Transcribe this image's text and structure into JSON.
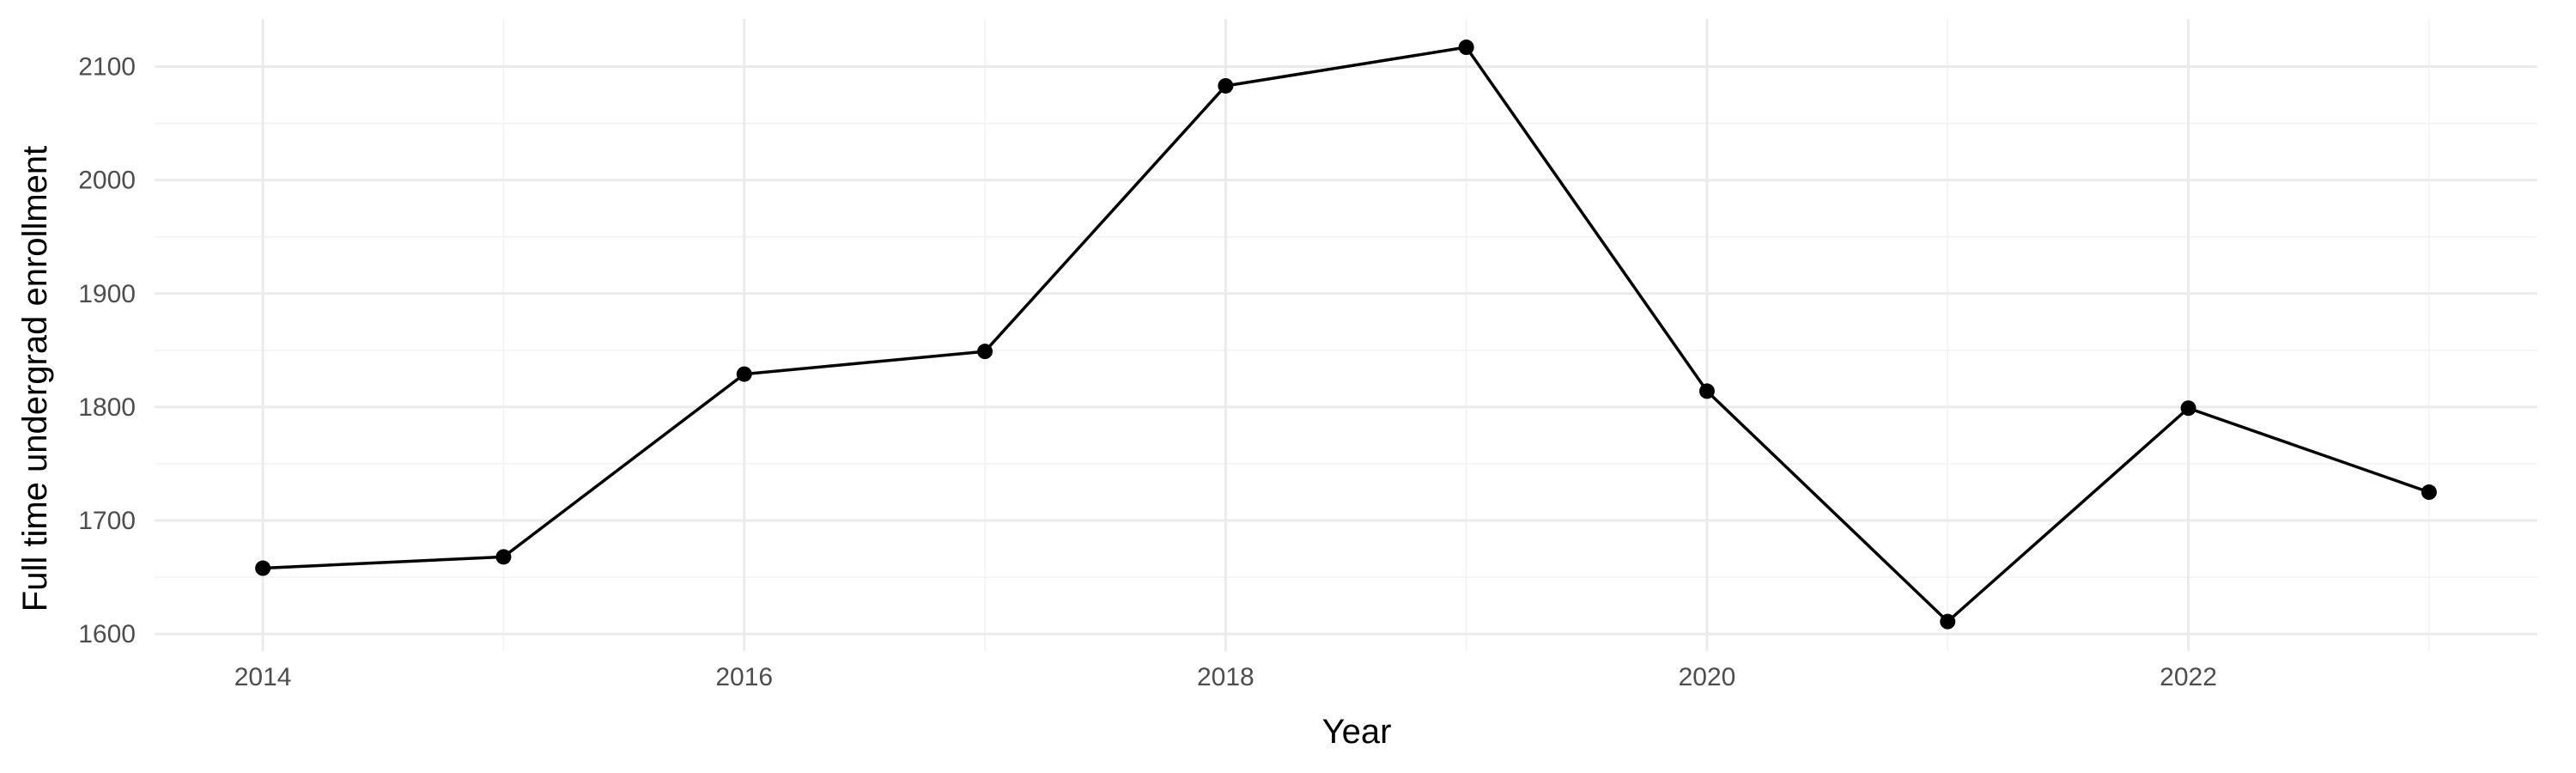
{
  "chart_data": {
    "type": "line",
    "xlabel": "Year",
    "ylabel": "Full time undergrad enrollment",
    "x": [
      2014,
      2015,
      2016,
      2017,
      2018,
      2019,
      2020,
      2021,
      2022,
      2023
    ],
    "series": [
      {
        "values": [
          1658,
          1668,
          1829,
          1849,
          2083,
          2117,
          1814,
          1611,
          1799,
          1725
        ]
      }
    ],
    "x_ticks": [
      "2014",
      "2016",
      "2018",
      "2020",
      "2022"
    ],
    "y_ticks": [
      "1600",
      "1700",
      "1800",
      "1900",
      "2000",
      "2100"
    ],
    "xlim": [
      2013.55,
      2023.45
    ],
    "ylim": [
      1585,
      2142
    ],
    "grid": true,
    "legend": "none",
    "colors": {
      "line": "#000000",
      "point": "#000000",
      "grid_major": "#ebebeb",
      "grid_minor": "#f2f2f2",
      "tick_text": "#4d4d4d"
    }
  }
}
